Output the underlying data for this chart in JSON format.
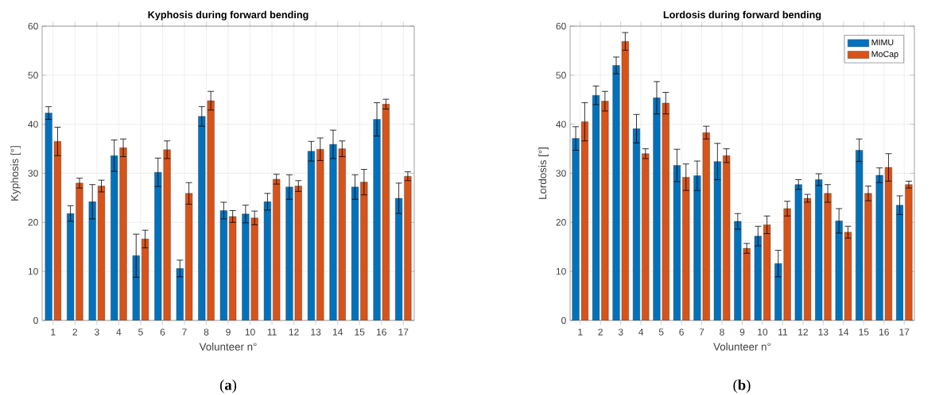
{
  "chart_data": [
    {
      "type": "bar",
      "title": "Kyphosis during forward bending",
      "xlabel": "Volunteer n°",
      "ylabel": "Kyphosis [°]",
      "categories": [
        "1",
        "2",
        "3",
        "4",
        "5",
        "6",
        "7",
        "8",
        "9",
        "10",
        "11",
        "12",
        "13",
        "14",
        "15",
        "16",
        "17"
      ],
      "series": [
        {
          "color": "#0072bd",
          "values": [
            42.3,
            21.8,
            24.2,
            33.6,
            13.2,
            30.2,
            10.6,
            41.6,
            22.4,
            21.7,
            24.2,
            27.2,
            34.5,
            35.9,
            27.2,
            41.0,
            24.9
          ],
          "errors": [
            1.3,
            1.6,
            3.5,
            3.2,
            4.4,
            2.9,
            1.7,
            2.0,
            1.7,
            1.8,
            1.7,
            2.5,
            2.0,
            2.9,
            2.5,
            3.4,
            3.1
          ]
        },
        {
          "color": "#d95319",
          "values": [
            36.5,
            28.0,
            27.4,
            35.2,
            16.6,
            34.8,
            25.9,
            44.8,
            21.2,
            20.9,
            28.8,
            27.4,
            34.9,
            35.0,
            28.2,
            44.1,
            29.4
          ],
          "errors": [
            2.9,
            1.0,
            1.2,
            1.8,
            1.8,
            1.8,
            2.2,
            1.9,
            1.2,
            1.4,
            1.0,
            1.1,
            2.3,
            1.6,
            2.6,
            1.0,
            0.9
          ]
        }
      ],
      "ylim": [
        0,
        60
      ],
      "yticks": [
        0,
        10,
        20,
        30,
        40,
        50,
        60
      ],
      "grid": true,
      "legend": false,
      "annotations": [
        "(**a**)"
      ]
    },
    {
      "type": "bar",
      "title": "Lordosis during forward bending",
      "xlabel": "Volunteer n°",
      "ylabel": "Lordosis [°]",
      "categories": [
        "1",
        "2",
        "3",
        "4",
        "5",
        "6",
        "7",
        "8",
        "9",
        "10",
        "11",
        "12",
        "13",
        "14",
        "15",
        "16",
        "17"
      ],
      "series": [
        {
          "name": "MIMU",
          "color": "#0072bd",
          "values": [
            37.1,
            45.9,
            52.0,
            39.1,
            45.4,
            31.6,
            29.5,
            32.4,
            20.2,
            17.2,
            11.6,
            27.7,
            28.7,
            20.3,
            34.7,
            29.6,
            23.5
          ],
          "errors": [
            2.4,
            1.9,
            1.7,
            2.9,
            3.3,
            3.3,
            3.0,
            3.7,
            1.6,
            2.0,
            2.7,
            1.0,
            1.2,
            2.5,
            2.3,
            1.5,
            1.9
          ]
        },
        {
          "name": "MoCap",
          "color": "#d95319",
          "values": [
            40.5,
            44.7,
            56.9,
            34.0,
            44.3,
            29.2,
            38.3,
            33.6,
            14.7,
            19.5,
            22.8,
            24.9,
            25.9,
            18.0,
            25.9,
            31.2,
            27.7
          ],
          "errors": [
            3.9,
            2.0,
            1.8,
            1.0,
            2.2,
            2.7,
            1.3,
            1.4,
            1.0,
            1.8,
            1.5,
            0.8,
            1.8,
            1.2,
            1.5,
            2.8,
            0.7
          ]
        }
      ],
      "ylim": [
        0,
        60
      ],
      "yticks": [
        0,
        10,
        20,
        30,
        40,
        50,
        60
      ],
      "grid": true,
      "legend": "top right",
      "annotations": [
        "(**b**)"
      ]
    }
  ]
}
